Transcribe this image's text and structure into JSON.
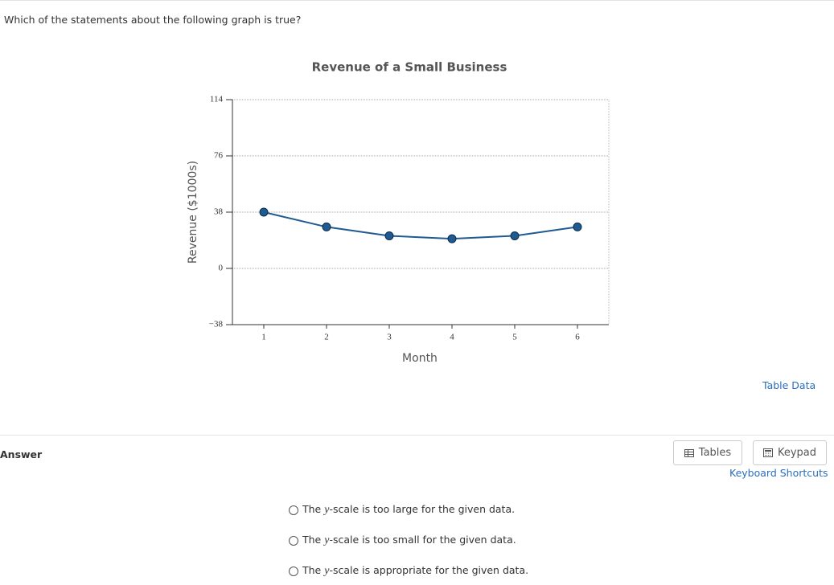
{
  "question": "Which of the statements about the following graph is true?",
  "chart_data": {
    "type": "line",
    "title": "Revenue of a Small Business",
    "x_label": "Month",
    "y_label": "Revenue ($1000s)",
    "x": [
      1,
      2,
      3,
      4,
      5,
      6
    ],
    "values": [
      38,
      28,
      22,
      20,
      22,
      28
    ],
    "color": "#1f5a92",
    "xlim": [
      0.5,
      6.5
    ],
    "xticks": [
      1,
      2,
      3,
      4,
      5,
      6
    ],
    "ylim": [
      -38,
      114
    ],
    "yticks": [
      {
        "value": -38,
        "label": "−38"
      },
      0,
      38,
      76,
      114
    ],
    "grid": true
  },
  "table_data_link": "Table Data",
  "answer_label": "Answer",
  "buttons": {
    "tables": "Tables",
    "keypad": "Keypad",
    "shortcuts": "Keyboard Shortcuts"
  },
  "options": [
    {
      "before": "The ",
      "variable": "y",
      "after": "-scale is too large for the given data."
    },
    {
      "before": "The ",
      "variable": "y",
      "after": "-scale is too small for the given data."
    },
    {
      "before": "The ",
      "variable": "y",
      "after": "-scale is appropriate for the given data."
    }
  ]
}
